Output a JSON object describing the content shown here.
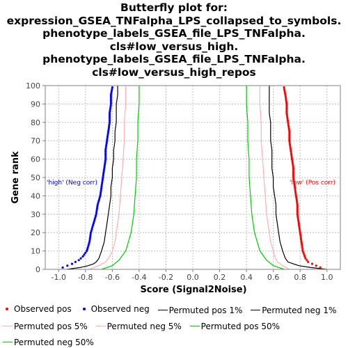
{
  "title_lines": [
    "Butterfly plot for:",
    "expression_GSEA_TNFalpha_LPS_collapsed_to_symbols.",
    "phenotype_labels_GSEA_file_LPS_TNFalpha.",
    "cls#low_versus_high.",
    "phenotype_labels_GSEA_file_LPS_TNFalpha.",
    "cls#low_versus_high_repos"
  ],
  "colors": {
    "observed_pos": "#ff0000",
    "observed_neg": "#0000ff",
    "permuted_1": "#000000",
    "permuted_5": "#ffafaf",
    "permuted_50": "#00cc00"
  },
  "annotations": {
    "neg": "'high' (Neg corr)",
    "pos": "'low' (Pos corr)"
  },
  "legend": [
    "Observed pos",
    "Observed neg",
    "Permuted pos 1%",
    "Permuted neg 1%",
    "Permuted pos 5%",
    "Permuted neg 5%",
    "Permuted pos 50%",
    "Permuted neg 50%"
  ],
  "chart_data": {
    "type": "scatter",
    "title": "Butterfly plot for: expression_GSEA_TNFalpha_LPS_collapsed_to_symbols. phenotype_labels_GSEA_file_LPS_TNFalpha. cls#low_versus_high. phenotype_labels_GSEA_file_LPS_TNFalpha. cls#low_versus_high_repos",
    "xlabel": "Score (Signal2Noise)",
    "ylabel": "Gene rank",
    "xlim": [
      -1.1,
      1.1
    ],
    "ylim": [
      0,
      100
    ],
    "x_ticks": [
      "-1.0",
      "-0.8",
      "-0.6",
      "-0.4",
      "-0.2",
      "0.0",
      "0.2",
      "0.4",
      "0.6",
      "0.8",
      "1.0"
    ],
    "y_ticks": [
      "0",
      "10",
      "20",
      "30",
      "40",
      "50",
      "60",
      "70",
      "80",
      "90",
      "100"
    ],
    "grid": true,
    "legend_position": "bottom",
    "series": [
      {
        "name": "Observed pos",
        "kind": "points",
        "rank": [
          1,
          2,
          3,
          4,
          6,
          10,
          15,
          20,
          25,
          30,
          35,
          40,
          45,
          50,
          55,
          60,
          65,
          70,
          75,
          80,
          85,
          90,
          95,
          99
        ],
        "score": [
          0.95,
          0.92,
          0.89,
          0.86,
          0.84,
          0.82,
          0.81,
          0.8,
          0.79,
          0.78,
          0.78,
          0.77,
          0.76,
          0.75,
          0.75,
          0.74,
          0.73,
          0.72,
          0.72,
          0.71,
          0.7,
          0.7,
          0.69,
          0.68
        ]
      },
      {
        "name": "Observed neg",
        "kind": "points",
        "rank": [
          1,
          3,
          5,
          7,
          10,
          15,
          20,
          25,
          30,
          35,
          40,
          45,
          50,
          55,
          60,
          65,
          70,
          75,
          80,
          85,
          90,
          95,
          99
        ],
        "score": [
          -0.97,
          -0.9,
          -0.85,
          -0.82,
          -0.79,
          -0.77,
          -0.76,
          -0.74,
          -0.72,
          -0.71,
          -0.69,
          -0.68,
          -0.67,
          -0.66,
          -0.65,
          -0.65,
          -0.64,
          -0.63,
          -0.62,
          -0.62,
          -0.61,
          -0.61,
          -0.6
        ]
      },
      {
        "name": "Permuted pos 1%",
        "kind": "line",
        "rank": [
          0,
          1,
          2,
          3,
          4,
          6,
          10,
          15,
          20,
          25,
          30,
          35,
          40,
          45,
          50,
          55,
          60,
          65,
          70,
          75,
          80,
          85,
          90,
          95,
          100
        ],
        "score": [
          1.0,
          0.88,
          0.79,
          0.75,
          0.71,
          0.69,
          0.67,
          0.65,
          0.64,
          0.63,
          0.62,
          0.62,
          0.61,
          0.6,
          0.6,
          0.59,
          0.59,
          0.59,
          0.58,
          0.58,
          0.58,
          0.57,
          0.57,
          0.57,
          0.57
        ]
      },
      {
        "name": "Permuted neg 1%",
        "kind": "line",
        "rank": [
          0,
          1,
          2,
          3,
          4,
          6,
          10,
          15,
          20,
          25,
          30,
          35,
          40,
          45,
          50,
          55,
          60,
          65,
          70,
          75,
          80,
          85,
          90,
          95,
          100
        ],
        "score": [
          -0.94,
          -0.84,
          -0.78,
          -0.74,
          -0.72,
          -0.7,
          -0.68,
          -0.66,
          -0.65,
          -0.64,
          -0.63,
          -0.62,
          -0.61,
          -0.61,
          -0.6,
          -0.6,
          -0.59,
          -0.59,
          -0.58,
          -0.58,
          -0.57,
          -0.57,
          -0.57,
          -0.56,
          -0.56
        ]
      },
      {
        "name": "Permuted pos 5%",
        "kind": "line",
        "rank": [
          0,
          2,
          4,
          7,
          10,
          15,
          20,
          25,
          30,
          40,
          50,
          60,
          70,
          80,
          90,
          100
        ],
        "score": [
          0.72,
          0.67,
          0.63,
          0.61,
          0.6,
          0.58,
          0.57,
          0.56,
          0.55,
          0.54,
          0.53,
          0.52,
          0.51,
          0.51,
          0.5,
          0.5
        ]
      },
      {
        "name": "Permuted neg 5%",
        "kind": "line",
        "rank": [
          0,
          2,
          4,
          7,
          10,
          15,
          20,
          25,
          30,
          40,
          50,
          60,
          70,
          80,
          90,
          100
        ],
        "score": [
          -0.77,
          -0.7,
          -0.65,
          -0.62,
          -0.6,
          -0.58,
          -0.57,
          -0.56,
          -0.55,
          -0.54,
          -0.53,
          -0.52,
          -0.51,
          -0.51,
          -0.5,
          -0.5
        ]
      },
      {
        "name": "Permuted pos 50%",
        "kind": "line",
        "rank": [
          0,
          2,
          5,
          10,
          15,
          20,
          25,
          30,
          40,
          50,
          60,
          70,
          80,
          90,
          100
        ],
        "score": [
          0.68,
          0.6,
          0.55,
          0.5,
          0.48,
          0.46,
          0.45,
          0.44,
          0.43,
          0.42,
          0.42,
          0.41,
          0.41,
          0.4,
          0.4
        ]
      },
      {
        "name": "Permuted neg 50%",
        "kind": "line",
        "rank": [
          0,
          2,
          5,
          10,
          15,
          20,
          25,
          30,
          40,
          50,
          60,
          70,
          80,
          90,
          100
        ],
        "score": [
          -0.68,
          -0.6,
          -0.55,
          -0.5,
          -0.48,
          -0.46,
          -0.45,
          -0.44,
          -0.43,
          -0.42,
          -0.42,
          -0.41,
          -0.41,
          -0.4,
          -0.4
        ]
      }
    ]
  }
}
